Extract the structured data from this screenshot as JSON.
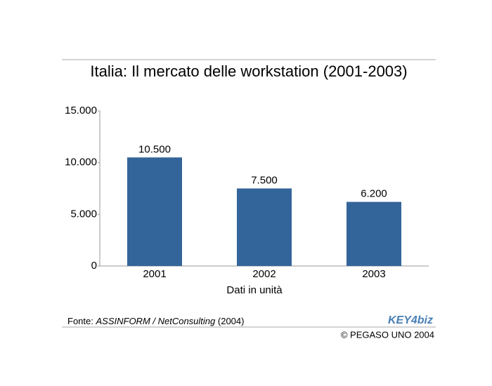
{
  "chart_data": {
    "type": "bar",
    "title": "Italia: Il mercato delle workstation (2001-2003)",
    "categories": [
      "2001",
      "2002",
      "2003"
    ],
    "values": [
      10500,
      7500,
      6200
    ],
    "value_labels": [
      "10.500",
      "7.500",
      "6.200"
    ],
    "color": "#34659a",
    "ylim": [
      0,
      15000
    ],
    "yticks": [
      0,
      {
        "value": 5000,
        "label": "5.000"
      },
      {
        "value": 10000,
        "label": "10.000"
      },
      {
        "value": 15000,
        "label": "15.000"
      }
    ],
    "xlabel": "Dati in unità",
    "grid": false,
    "source_prefix": "Fonte:",
    "source_italic": "ASSINFORM / NetConsulting",
    "source_year": "(2004)",
    "logo": "KEY4biz",
    "copyright": "© PEGASO UNO 2004"
  }
}
